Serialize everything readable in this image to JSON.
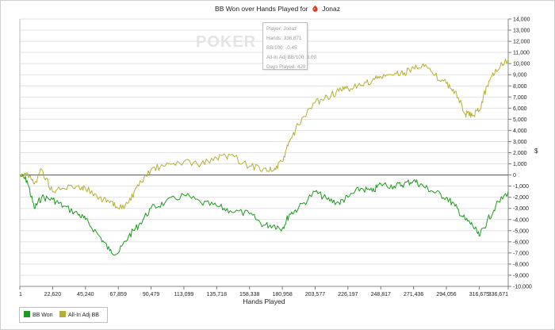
{
  "title": "BB Won over Hands Played for",
  "player_name": "Jonaz",
  "watermark": "POKER",
  "tooltip": {
    "player": "Player: Jonaz",
    "hands": "Hands: 336,671",
    "bb100": "BB/100: -0.45",
    "allin_bb100": "All-In Adj BB/100: 3.09",
    "days": "Days Played: 429"
  },
  "colors": {
    "bb_won": "#1e9a1e",
    "allin_adj": "#b5b033",
    "zero_line": "#555555",
    "grid": "#e3e3e3"
  },
  "chart_data": {
    "type": "line",
    "xlabel": "Hands Played",
    "ylabel": "$",
    "xlim": [
      1,
      336671
    ],
    "ylim": [
      -10000,
      14000
    ],
    "x_ticks": [
      "1",
      "22,620",
      "45,240",
      "67,859",
      "90,479",
      "113,099",
      "135,718",
      "158,338",
      "180,958",
      "203,577",
      "226,197",
      "248,817",
      "271,436",
      "294,056",
      "316,675",
      "336,671"
    ],
    "y_ticks": [
      "14,000",
      "13,000",
      "12,000",
      "11,000",
      "10,000",
      "9,000",
      "8,000",
      "7,000",
      "6,000",
      "5,000",
      "4,000",
      "3,000",
      "2,000",
      "1,000",
      "0",
      "-1,000",
      "-2,000",
      "-3,000",
      "-4,000",
      "-5,000",
      "-6,000",
      "-7,000",
      "-8,000",
      "-9,000",
      "-10,000"
    ],
    "x": [
      1,
      5000,
      10000,
      15000,
      22620,
      30000,
      40000,
      45240,
      55000,
      62000,
      67859,
      75000,
      82000,
      90479,
      100000,
      113099,
      125000,
      135718,
      145000,
      158338,
      168000,
      175000,
      180958,
      186000,
      192000,
      203577,
      212000,
      220000,
      226197,
      235000,
      243000,
      248817,
      258000,
      265000,
      271436,
      278000,
      285000,
      294056,
      300000,
      307000,
      312000,
      316675,
      322000,
      328000,
      336671
    ],
    "series": [
      {
        "name": "BB Won",
        "values": [
          0,
          -500,
          -3000,
          -2000,
          -2200,
          -2800,
          -3500,
          -4000,
          -5500,
          -6800,
          -7000,
          -5500,
          -4500,
          -3000,
          -2500,
          -1800,
          -2500,
          -2800,
          -3200,
          -3500,
          -4500,
          -4500,
          -4800,
          -3500,
          -3000,
          -1500,
          -2200,
          -2500,
          -2000,
          -1200,
          -1500,
          -800,
          -1000,
          -800,
          -500,
          -1000,
          -1500,
          -2000,
          -2800,
          -4000,
          -4500,
          -5500,
          -4200,
          -2800,
          -1500
        ]
      },
      {
        "name": "All-In Adj BB",
        "values": [
          0,
          200,
          -800,
          500,
          -1500,
          -1200,
          -1000,
          -1200,
          -2000,
          -2500,
          -3000,
          -2500,
          -1000,
          500,
          800,
          1200,
          1000,
          1500,
          1800,
          800,
          600,
          400,
          1200,
          3000,
          4500,
          6500,
          7000,
          7500,
          7800,
          8000,
          8500,
          8800,
          9000,
          9200,
          9600,
          10000,
          9000,
          8200,
          7500,
          5500,
          5300,
          5800,
          8000,
          9500,
          10400
        ]
      }
    ]
  }
}
